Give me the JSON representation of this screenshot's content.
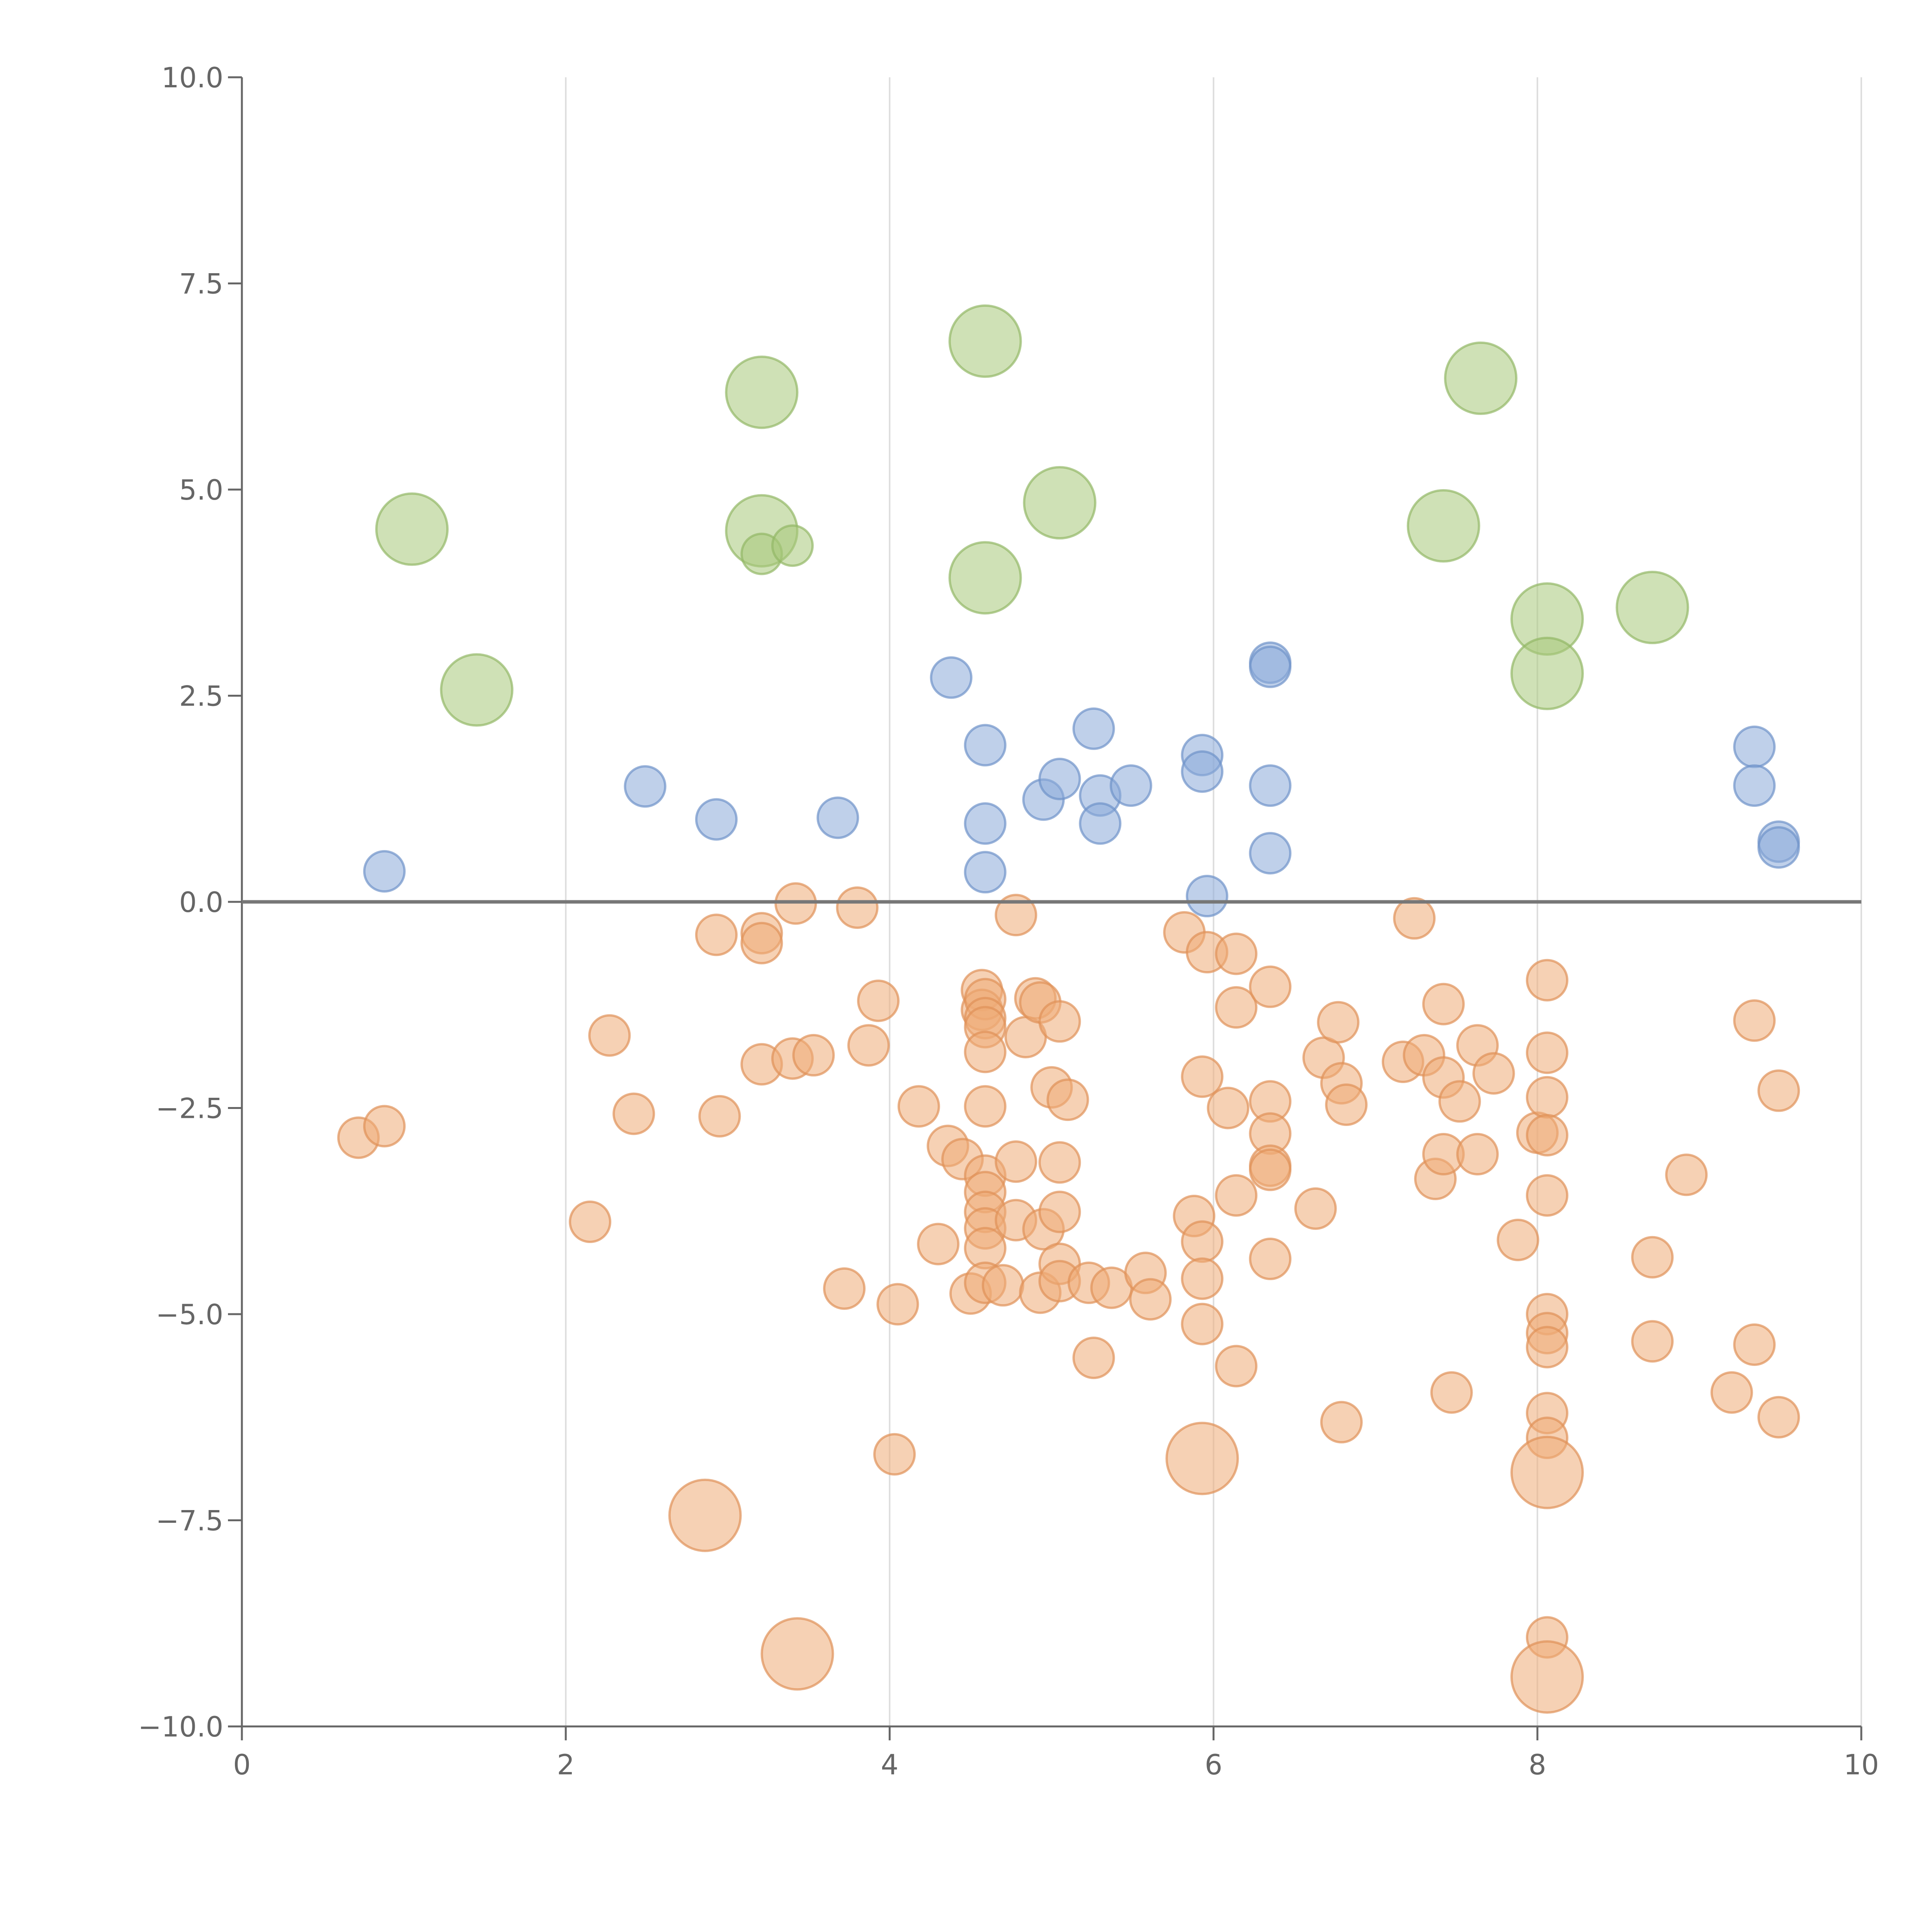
{
  "chart_data": {
    "type": "scatter",
    "title": "",
    "xlabel": "",
    "ylabel": "",
    "xlim": [
      0,
      10
    ],
    "ylim": [
      -10,
      10
    ],
    "x_ticks": [
      0,
      2,
      4,
      6,
      8,
      10
    ],
    "x_tick_labels": [
      "0",
      "2",
      "4",
      "6",
      "8",
      "10"
    ],
    "y_ticks": [
      -10,
      -7.5,
      -5,
      -2.5,
      0,
      2.5,
      5,
      7.5,
      10
    ],
    "y_tick_labels": [
      "−10.0",
      "−7.5",
      "−5.0",
      "−2.5",
      "0.0",
      "2.5",
      "5.0",
      "7.5",
      "10.0"
    ],
    "grid": "vertical",
    "reference_line_y": 0,
    "size_scale": "relative bubble size 1–3",
    "series": [
      {
        "name": "green",
        "color": "#a8c97a",
        "stroke": "#93b866",
        "points": [
          [
            1.05,
            4.52,
            3
          ],
          [
            1.45,
            2.57,
            3
          ],
          [
            3.21,
            6.18,
            3
          ],
          [
            3.21,
            4.5,
            3
          ],
          [
            3.21,
            4.22,
            1
          ],
          [
            3.4,
            4.32,
            1
          ],
          [
            4.59,
            6.8,
            3
          ],
          [
            4.59,
            3.93,
            3
          ],
          [
            5.05,
            4.84,
            3
          ],
          [
            7.42,
            4.56,
            3
          ],
          [
            7.65,
            6.35,
            3
          ],
          [
            8.06,
            3.43,
            3
          ],
          [
            8.06,
            2.77,
            3
          ],
          [
            8.71,
            3.57,
            3
          ]
        ]
      },
      {
        "name": "blue",
        "color": "#8aaad8",
        "stroke": "#6f93c9",
        "points": [
          [
            0.88,
            0.37,
            1
          ],
          [
            2.49,
            1.4,
            1
          ],
          [
            2.93,
            1.0,
            1
          ],
          [
            3.68,
            1.02,
            1
          ],
          [
            4.38,
            2.72,
            1
          ],
          [
            4.59,
            1.9,
            1
          ],
          [
            4.59,
            0.95,
            1
          ],
          [
            4.59,
            0.36,
            1
          ],
          [
            4.95,
            1.24,
            1
          ],
          [
            5.05,
            1.49,
            1
          ],
          [
            5.26,
            2.1,
            1
          ],
          [
            5.3,
            1.29,
            1
          ],
          [
            5.3,
            0.95,
            1
          ],
          [
            5.49,
            1.41,
            1
          ],
          [
            5.93,
            1.78,
            1
          ],
          [
            5.93,
            1.58,
            1
          ],
          [
            5.96,
            0.07,
            1
          ],
          [
            6.35,
            2.9,
            1
          ],
          [
            6.35,
            2.85,
            1
          ],
          [
            6.35,
            1.41,
            1
          ],
          [
            6.35,
            0.59,
            1
          ],
          [
            9.34,
            1.88,
            1
          ],
          [
            9.34,
            1.41,
            1
          ],
          [
            9.49,
            0.73,
            1
          ],
          [
            9.49,
            0.66,
            1
          ]
        ]
      },
      {
        "name": "orange",
        "color": "#eeab77",
        "stroke": "#e09158",
        "points": [
          [
            0.72,
            -2.86,
            1
          ],
          [
            0.88,
            -2.72,
            1
          ],
          [
            2.15,
            -3.88,
            1
          ],
          [
            2.27,
            -1.62,
            1
          ],
          [
            2.42,
            -2.57,
            1
          ],
          [
            2.93,
            -0.4,
            1
          ],
          [
            2.95,
            -2.6,
            1
          ],
          [
            2.86,
            -7.44,
            3
          ],
          [
            3.21,
            -0.38,
            1
          ],
          [
            3.21,
            -0.5,
            1
          ],
          [
            3.21,
            -1.97,
            1
          ],
          [
            3.4,
            -1.9,
            1
          ],
          [
            3.43,
            -9.12,
            3
          ],
          [
            3.42,
            -0.02,
            1
          ],
          [
            3.53,
            -1.86,
            1
          ],
          [
            3.72,
            -4.69,
            1
          ],
          [
            3.8,
            -0.07,
            1
          ],
          [
            3.87,
            -1.74,
            1
          ],
          [
            3.93,
            -1.2,
            1
          ],
          [
            4.03,
            -6.7,
            1
          ],
          [
            4.05,
            -4.88,
            1
          ],
          [
            4.18,
            -2.48,
            1
          ],
          [
            4.3,
            -4.15,
            1
          ],
          [
            4.36,
            -2.96,
            1
          ],
          [
            4.45,
            -3.12,
            1
          ],
          [
            4.5,
            -4.75,
            1
          ],
          [
            4.57,
            -1.07,
            1
          ],
          [
            4.57,
            -1.31,
            1
          ],
          [
            4.59,
            -1.18,
            1
          ],
          [
            4.59,
            -1.41,
            1
          ],
          [
            4.59,
            -1.52,
            1
          ],
          [
            4.59,
            -1.82,
            1
          ],
          [
            4.59,
            -2.48,
            1
          ],
          [
            4.59,
            -3.32,
            1
          ],
          [
            4.59,
            -3.52,
            1
          ],
          [
            4.59,
            -3.76,
            1
          ],
          [
            4.59,
            -3.96,
            1
          ],
          [
            4.59,
            -4.2,
            1
          ],
          [
            4.59,
            -4.62,
            1
          ],
          [
            4.7,
            -4.65,
            1
          ],
          [
            4.78,
            -0.16,
            1
          ],
          [
            4.78,
            -3.15,
            1
          ],
          [
            4.78,
            -3.86,
            1
          ],
          [
            4.84,
            -1.64,
            1
          ],
          [
            4.9,
            -1.17,
            1
          ],
          [
            4.93,
            -1.22,
            1
          ],
          [
            4.93,
            -4.74,
            1
          ],
          [
            4.95,
            -3.97,
            1
          ],
          [
            5.0,
            -2.25,
            1
          ],
          [
            5.05,
            -1.45,
            1
          ],
          [
            5.05,
            -3.16,
            1
          ],
          [
            5.05,
            -3.76,
            1
          ],
          [
            5.05,
            -4.39,
            1
          ],
          [
            5.05,
            -4.6,
            1
          ],
          [
            5.1,
            -2.4,
            1
          ],
          [
            5.23,
            -4.62,
            1
          ],
          [
            5.26,
            -5.53,
            1
          ],
          [
            5.37,
            -4.68,
            1
          ],
          [
            5.58,
            -4.5,
            1
          ],
          [
            5.61,
            -4.82,
            1
          ],
          [
            5.82,
            -0.37,
            1
          ],
          [
            5.88,
            -3.81,
            1
          ],
          [
            5.93,
            -2.12,
            1
          ],
          [
            5.93,
            -4.12,
            1
          ],
          [
            5.93,
            -4.57,
            1
          ],
          [
            5.93,
            -5.12,
            1
          ],
          [
            5.93,
            -6.75,
            3
          ],
          [
            5.96,
            -0.61,
            1
          ],
          [
            6.09,
            -2.5,
            1
          ],
          [
            6.14,
            -0.63,
            1
          ],
          [
            6.14,
            -1.28,
            1
          ],
          [
            6.14,
            -3.56,
            1
          ],
          [
            6.14,
            -5.63,
            1
          ],
          [
            6.35,
            -1.03,
            1
          ],
          [
            6.35,
            -2.42,
            1
          ],
          [
            6.35,
            -2.81,
            1
          ],
          [
            6.35,
            -3.2,
            1
          ],
          [
            6.35,
            -3.25,
            1
          ],
          [
            6.35,
            -4.33,
            1
          ],
          [
            6.63,
            -3.72,
            1
          ],
          [
            6.68,
            -1.89,
            1
          ],
          [
            6.77,
            -1.46,
            1
          ],
          [
            6.79,
            -2.2,
            1
          ],
          [
            6.79,
            -6.31,
            1
          ],
          [
            6.82,
            -2.46,
            1
          ],
          [
            7.17,
            -1.94,
            1
          ],
          [
            7.24,
            -0.2,
            1
          ],
          [
            7.3,
            -1.86,
            1
          ],
          [
            7.37,
            -3.36,
            1
          ],
          [
            7.42,
            -1.24,
            1
          ],
          [
            7.42,
            -2.13,
            1
          ],
          [
            7.42,
            -3.06,
            1
          ],
          [
            7.47,
            -5.95,
            1
          ],
          [
            7.52,
            -2.42,
            1
          ],
          [
            7.63,
            -1.74,
            1
          ],
          [
            7.63,
            -3.06,
            1
          ],
          [
            7.73,
            -2.08,
            1
          ],
          [
            7.88,
            -4.1,
            1
          ],
          [
            8.0,
            -2.8,
            1
          ],
          [
            8.06,
            -0.95,
            1
          ],
          [
            8.06,
            -1.83,
            1
          ],
          [
            8.06,
            -2.37,
            1
          ],
          [
            8.06,
            -2.83,
            1
          ],
          [
            8.06,
            -3.56,
            1
          ],
          [
            8.06,
            -5.0,
            1
          ],
          [
            8.06,
            -5.23,
            1
          ],
          [
            8.06,
            -5.4,
            1
          ],
          [
            8.06,
            -6.2,
            1
          ],
          [
            8.06,
            -6.5,
            1
          ],
          [
            8.06,
            -6.92,
            3
          ],
          [
            8.06,
            -8.92,
            1
          ],
          [
            8.06,
            -9.4,
            3
          ],
          [
            8.71,
            -4.31,
            1
          ],
          [
            8.71,
            -5.33,
            1
          ],
          [
            8.92,
            -3.31,
            1
          ],
          [
            9.2,
            -5.95,
            1
          ],
          [
            9.34,
            -1.44,
            1
          ],
          [
            9.34,
            -5.37,
            1
          ],
          [
            9.49,
            -2.29,
            1
          ],
          [
            9.49,
            -6.25,
            1
          ]
        ]
      }
    ]
  }
}
